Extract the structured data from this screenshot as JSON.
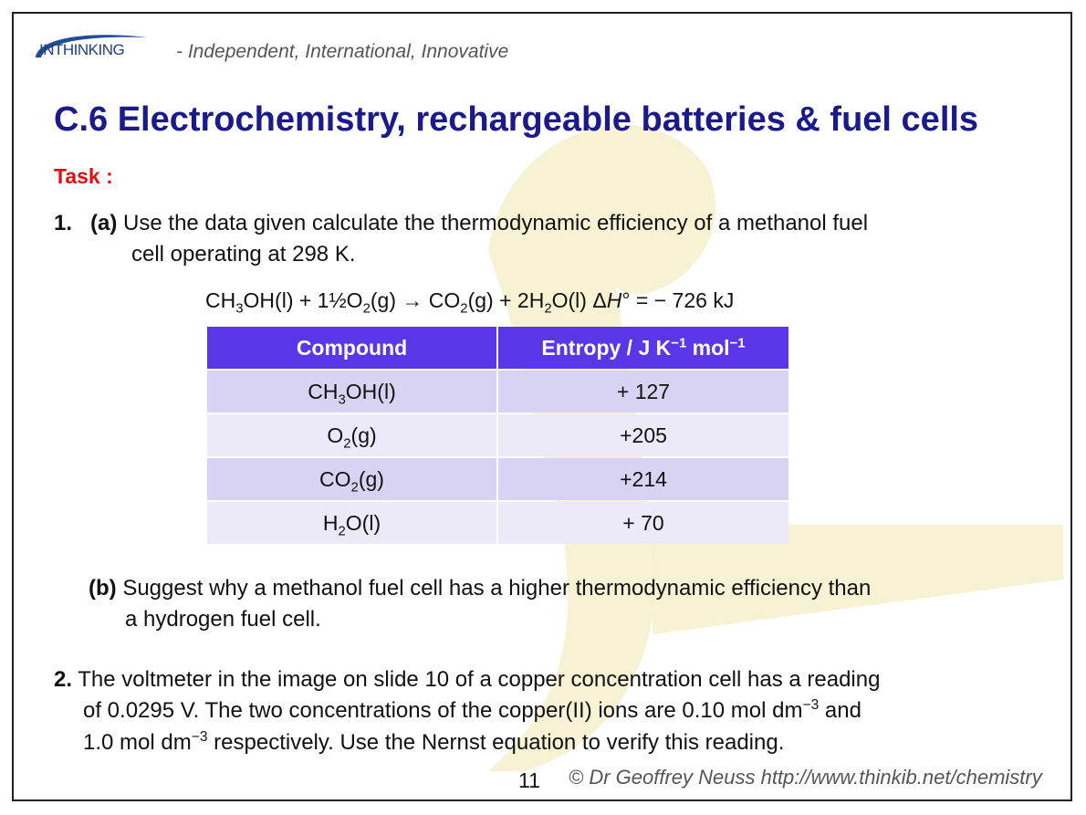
{
  "header": {
    "logo_text": "INTHINKING",
    "tagline": "- Independent, International, Innovative"
  },
  "title": "C.6 Electrochemistry, rechargeable batteries & fuel cells",
  "task_label": "Task :",
  "q1": {
    "number": "1.",
    "part_a_label": "(a)",
    "part_a_line1": "Use the data given calculate the thermodynamic efficiency of a methanol fuel",
    "part_a_line2": "cell operating at 298 K.",
    "equation": {
      "lhs1": "CH",
      "lhs1_sub": "3",
      "lhs1_rest": "OH(l)  + 1½O",
      "lhs2_sub": "2",
      "lhs2_rest": "(g) → CO",
      "rhs1_sub": "2",
      "rhs1_rest": "(g) + 2H",
      "rhs2_sub": "2",
      "rhs2_rest": "O(l)  Δ",
      "h_symbol": "H",
      "tail": "° = − 726 kJ"
    },
    "table": {
      "headers": [
        "Compound",
        "Entropy / J K"
      ],
      "header_sup1": "−1",
      "header_mol": " mol",
      "header_sup2": "−1",
      "rows": [
        {
          "pre": "CH",
          "sub": "3",
          "post": "OH(l)",
          "value": "+ 127"
        },
        {
          "pre": "O",
          "sub": "2",
          "post": "(g)",
          "value": "+205"
        },
        {
          "pre": "CO",
          "sub": "2",
          "post": "(g)",
          "value": "+214"
        },
        {
          "pre": "H",
          "sub": "2",
          "post": "O(l)",
          "value": "+ 70"
        }
      ]
    },
    "part_b_label": "(b)",
    "part_b_line1": "Suggest why a methanol fuel cell has a higher thermodynamic efficiency than",
    "part_b_line2": "a hydrogen fuel cell."
  },
  "q2": {
    "number": "2.",
    "line1": "The voltmeter in the image on slide 10 of a copper concentration cell has a reading",
    "line2_a": "of 0.0295 V. The two concentrations of the copper(II) ions are 0.10 mol dm",
    "line2_sup": "−3",
    "line2_b": " and",
    "line3_a": "1.0 mol dm",
    "line3_sup": "−3",
    "line3_b": " respectively.  Use the Nernst equation to verify this reading."
  },
  "footer": {
    "page_number": "11",
    "credit": "© Dr Geoffrey Neuss http://www.thinkib.net/chemistry"
  },
  "colors": {
    "title": "#1a1a8c",
    "task": "#e01010",
    "table_header": "#5b36e6",
    "row_odd": "#d9d3f3",
    "row_even": "#ece9f9",
    "watermark": "#f6efc8"
  }
}
